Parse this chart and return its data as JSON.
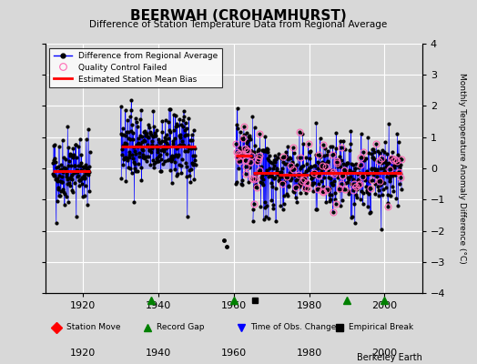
{
  "title": "BEERWAH (CROHAMHURST)",
  "subtitle": "Difference of Station Temperature Data from Regional Average",
  "ylabel": "Monthly Temperature Anomaly Difference (°C)",
  "xlim": [
    1910,
    2010
  ],
  "ylim": [
    -4,
    4
  ],
  "yticks": [
    -4,
    -3,
    -2,
    -1,
    0,
    1,
    2,
    3,
    4
  ],
  "xticks": [
    1920,
    1940,
    1960,
    1980,
    2000
  ],
  "bg_color": "#d8d8d8",
  "plot_bg_color": "#d8d8d8",
  "grid_color": "#ffffff",
  "seed": 42,
  "active_segments": [
    {
      "start": 1912.0,
      "end": 1921.9,
      "bias": -0.1
    },
    {
      "start": 1930.0,
      "end": 1949.9,
      "bias": 0.7
    },
    {
      "start": 1960.5,
      "end": 1965.0,
      "bias": 0.4
    },
    {
      "start": 1965.1,
      "end": 1971.9,
      "bias": -0.15
    },
    {
      "start": 1972.0,
      "end": 1979.9,
      "bias": -0.2
    },
    {
      "start": 1980.0,
      "end": 1989.9,
      "bias": -0.15
    },
    {
      "start": 1990.0,
      "end": 2004.5,
      "bias": -0.15
    }
  ],
  "lone_points": [
    {
      "year": 1957.3,
      "value": -2.3
    },
    {
      "year": 1958.2,
      "value": -2.5
    }
  ],
  "record_gaps": [
    1938.0,
    1960.0,
    1990.0,
    2000.0
  ],
  "empirical_breaks": [
    1965.5
  ],
  "qc_failed_regions": [
    {
      "start": 1960.5,
      "end": 1967.0,
      "density": 0.4
    },
    {
      "start": 1972.0,
      "end": 2004.5,
      "density": 0.15
    }
  ],
  "bias_lines": [
    {
      "start": 1912.0,
      "end": 1921.9,
      "bias": -0.1
    },
    {
      "start": 1930.0,
      "end": 1949.9,
      "bias": 0.7
    },
    {
      "start": 1960.5,
      "end": 1965.0,
      "bias": 0.4
    },
    {
      "start": 1965.1,
      "end": 1971.9,
      "bias": -0.15
    },
    {
      "start": 1972.0,
      "end": 1979.9,
      "bias": -0.2
    },
    {
      "start": 1980.0,
      "end": 2004.5,
      "bias": -0.15
    }
  ],
  "footnote": "Berkeley Earth"
}
